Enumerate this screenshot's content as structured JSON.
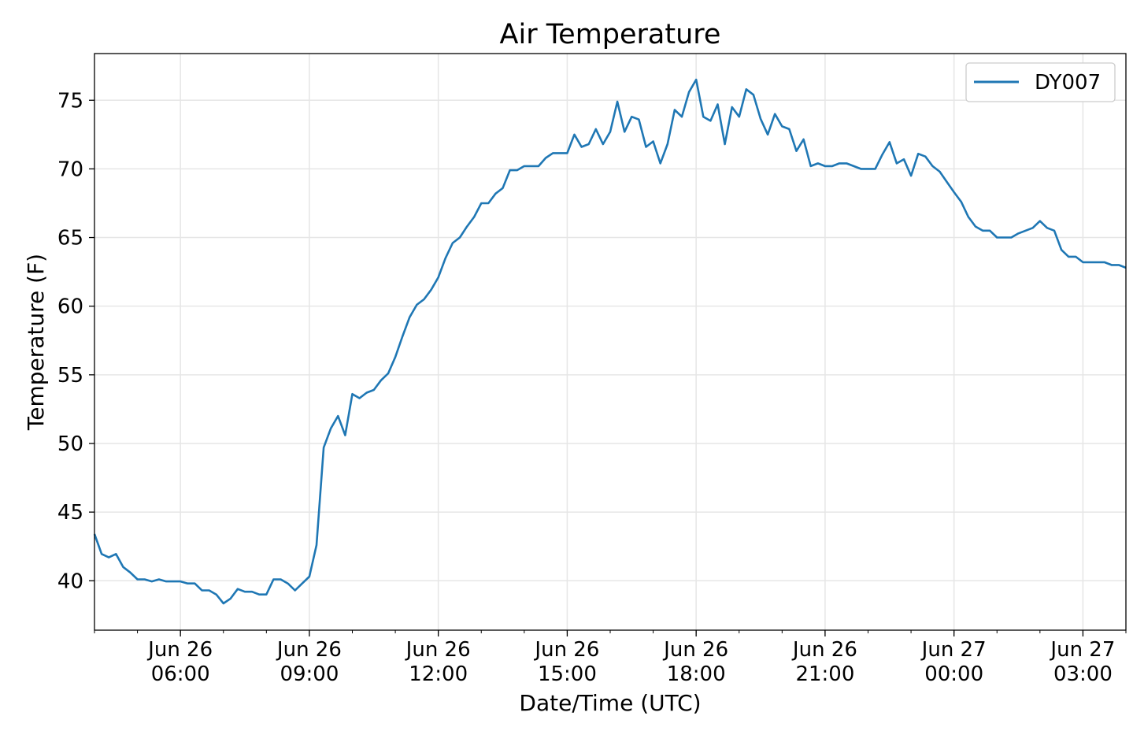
{
  "chart_data": {
    "type": "line",
    "title": "Air Temperature",
    "xlabel": "Date/Time (UTC)",
    "ylabel": "Temperature (F)",
    "x_unit": "hours since Jun 26 00:00 UTC",
    "x_start": 4,
    "interval_minutes": 10,
    "xlim": [
      4,
      28
    ],
    "ylim": [
      36.4,
      78.4
    ],
    "grid": true,
    "legend_position": "top-right",
    "x_ticks": [
      {
        "value": 6,
        "line1": "Jun 26",
        "line2": "06:00"
      },
      {
        "value": 9,
        "line1": "Jun 26",
        "line2": "09:00"
      },
      {
        "value": 12,
        "line1": "Jun 26",
        "line2": "12:00"
      },
      {
        "value": 15,
        "line1": "Jun 26",
        "line2": "15:00"
      },
      {
        "value": 18,
        "line1": "Jun 26",
        "line2": "18:00"
      },
      {
        "value": 21,
        "line1": "Jun 26",
        "line2": "21:00"
      },
      {
        "value": 24,
        "line1": "Jun 27",
        "line2": "00:00"
      },
      {
        "value": 27,
        "line1": "Jun 27",
        "line2": "03:00"
      }
    ],
    "y_ticks": [
      "40",
      "45",
      "50",
      "55",
      "60",
      "65",
      "70",
      "75"
    ],
    "series": [
      {
        "name": "DY007",
        "color": "#1f77b4",
        "values": [
          43.4,
          41.95,
          41.7,
          41.95,
          41.0,
          40.6,
          40.1,
          40.1,
          39.95,
          40.1,
          39.95,
          39.95,
          39.95,
          39.8,
          39.8,
          39.3,
          39.3,
          39.0,
          38.35,
          38.7,
          39.4,
          39.2,
          39.2,
          39.0,
          39.0,
          40.1,
          40.1,
          39.8,
          39.3,
          39.8,
          40.3,
          42.6,
          49.7,
          51.1,
          52.0,
          50.6,
          53.6,
          53.3,
          53.7,
          53.9,
          54.6,
          55.1,
          56.3,
          57.8,
          59.2,
          60.1,
          60.5,
          61.2,
          62.1,
          63.5,
          64.6,
          65.0,
          65.8,
          66.5,
          67.5,
          67.5,
          68.2,
          68.6,
          69.9,
          69.9,
          70.2,
          70.2,
          70.2,
          70.8,
          71.15,
          71.15,
          71.15,
          72.5,
          71.6,
          71.8,
          72.9,
          71.8,
          72.7,
          74.9,
          72.7,
          73.8,
          73.6,
          71.6,
          72.0,
          70.4,
          71.8,
          74.3,
          73.8,
          75.6,
          76.5,
          73.8,
          73.5,
          74.7,
          71.8,
          74.5,
          73.8,
          75.8,
          75.4,
          73.65,
          72.5,
          74.0,
          73.1,
          72.9,
          71.3,
          72.15,
          70.2,
          70.4,
          70.2,
          70.2,
          70.4,
          70.4,
          70.2,
          70.0,
          70.0,
          70.0,
          71.05,
          71.95,
          70.4,
          70.7,
          69.5,
          71.1,
          70.9,
          70.2,
          69.8,
          69.05,
          68.3,
          67.6,
          66.5,
          65.8,
          65.5,
          65.5,
          65.0,
          65.0,
          65.0,
          65.3,
          65.5,
          65.7,
          66.2,
          65.7,
          65.5,
          64.1,
          63.6,
          63.6,
          63.2,
          63.2,
          63.2,
          63.2,
          63.0,
          63.0,
          62.8
        ]
      }
    ]
  }
}
